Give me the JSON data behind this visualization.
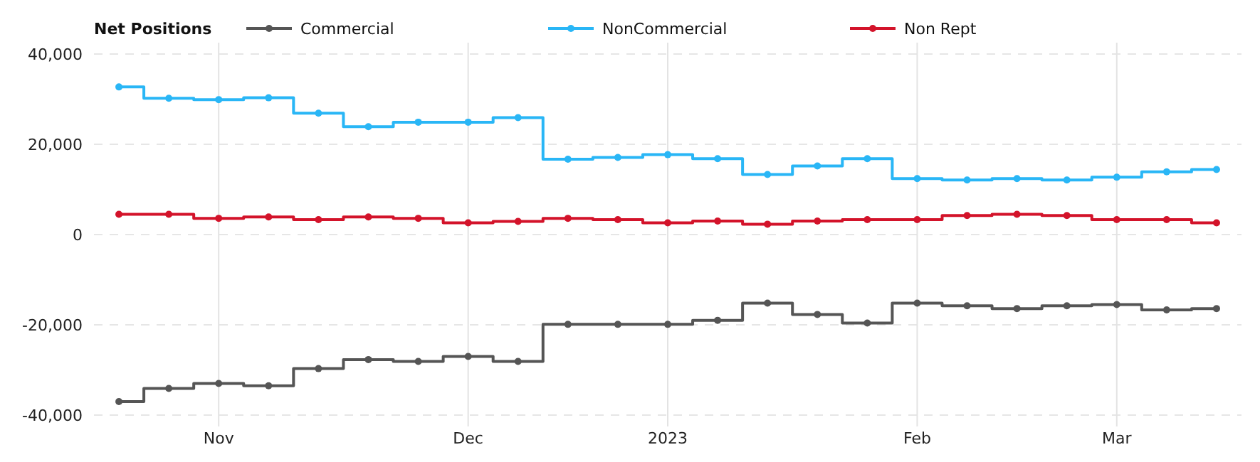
{
  "chart_data": {
    "type": "step",
    "legend_title": "Net Positions",
    "legend": "top",
    "grid": true,
    "marker": "circle",
    "line_style": "solid",
    "categories": [
      null,
      null,
      "Nov",
      null,
      null,
      null,
      null,
      "Dec",
      null,
      null,
      null,
      "2023",
      null,
      null,
      null,
      null,
      "Feb",
      null,
      null,
      null,
      "Mar",
      null,
      null
    ],
    "ylim": [
      -40000,
      40000
    ],
    "yticks": [
      {
        "value": -40000,
        "label": "-40,000"
      },
      {
        "value": -20000,
        "label": "-20,000"
      },
      0,
      {
        "value": 20000,
        "label": "20,000"
      },
      {
        "value": 40000,
        "label": "40,000"
      }
    ],
    "series": [
      {
        "name": "Commercial",
        "color": "#555555",
        "values": [
          -37000,
          -34100,
          -33000,
          -33500,
          -29700,
          -27700,
          -28100,
          -27000,
          -28100,
          -19900,
          -19900,
          -19900,
          -19000,
          -15200,
          -17700,
          -19600,
          -15200,
          -15800,
          -16400,
          -15800,
          -15500,
          -16700,
          -16400
        ]
      },
      {
        "name": "NonCommercial",
        "color": "#29b6f6",
        "values": [
          32700,
          30200,
          29900,
          30300,
          26900,
          23900,
          24900,
          24900,
          25900,
          16700,
          17100,
          17700,
          16800,
          13300,
          15200,
          16800,
          12400,
          12100,
          12400,
          12100,
          12700,
          13900,
          14400
        ]
      },
      {
        "name": "Non Rept",
        "color": "#d3132a",
        "values": [
          4500,
          4500,
          3600,
          3900,
          3300,
          3900,
          3600,
          2600,
          2900,
          3600,
          3300,
          2600,
          3000,
          2300,
          3000,
          3300,
          3300,
          4200,
          4500,
          4200,
          3300,
          3300,
          2600
        ]
      }
    ]
  }
}
